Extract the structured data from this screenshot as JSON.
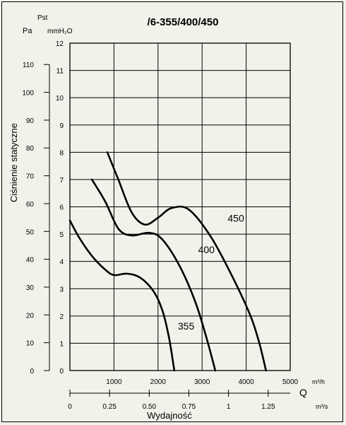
{
  "chart_data": {
    "type": "line",
    "title": "/6-355/400/450",
    "ylabel": "Ciśnienie statyczne",
    "xlabel": "Wydajność",
    "x_axis_letter": "Q",
    "y_units": {
      "left_top": "Pst",
      "left": "Pa",
      "right": "mmH₂O"
    },
    "x_units": {
      "top": "m³/h",
      "bottom": "m³/s"
    },
    "x_range_m3h": [
      0,
      5000
    ],
    "y_range_mmH2O": [
      0,
      12
    ],
    "x_ticks_m3h": [
      "1000",
      "2000",
      "3000",
      "4000",
      "5000"
    ],
    "x_ticks_m3s": [
      "0",
      "0.25",
      "0.50",
      "0.75",
      "1",
      "1.25"
    ],
    "x_ticks_m3s_values": [
      0,
      0.25,
      0.5,
      0.75,
      1,
      1.25
    ],
    "y_ticks_mmH2O": [
      "0",
      "1",
      "2",
      "3",
      "4",
      "5",
      "6",
      "7",
      "8",
      "9",
      "10",
      "11",
      "12"
    ],
    "y_ticks_Pa": [
      "0",
      "10",
      "20",
      "30",
      "40",
      "50",
      "60",
      "70",
      "80",
      "90",
      "100",
      "110"
    ],
    "y_ticks_Pa_values": [
      0,
      10,
      20,
      30,
      40,
      50,
      60,
      70,
      80,
      90,
      100,
      110
    ],
    "grid": true,
    "series": [
      {
        "name": "355",
        "points": [
          [
            0,
            5.5
          ],
          [
            200,
            4.9
          ],
          [
            500,
            4.2
          ],
          [
            800,
            3.7
          ],
          [
            1000,
            3.5
          ],
          [
            1300,
            3.55
          ],
          [
            1600,
            3.4
          ],
          [
            1900,
            2.9
          ],
          [
            2100,
            2.2
          ],
          [
            2250,
            1.2
          ],
          [
            2370,
            0
          ]
        ],
        "label_at": [
          2450,
          1.5
        ]
      },
      {
        "name": "400",
        "points": [
          [
            500,
            7.0
          ],
          [
            800,
            6.2
          ],
          [
            1100,
            5.2
          ],
          [
            1400,
            4.95
          ],
          [
            1800,
            5.05
          ],
          [
            2100,
            4.8
          ],
          [
            2500,
            3.8
          ],
          [
            2850,
            2.5
          ],
          [
            3100,
            1.2
          ],
          [
            3300,
            0
          ]
        ],
        "label_at": [
          2910,
          4.3
        ]
      },
      {
        "name": "450",
        "points": [
          [
            850,
            8.0
          ],
          [
            1100,
            7.0
          ],
          [
            1400,
            5.8
          ],
          [
            1700,
            5.35
          ],
          [
            2000,
            5.6
          ],
          [
            2300,
            5.95
          ],
          [
            2700,
            5.9
          ],
          [
            3200,
            4.9
          ],
          [
            3700,
            3.4
          ],
          [
            4100,
            2.0
          ],
          [
            4300,
            1.0
          ],
          [
            4450,
            0
          ]
        ],
        "label_at": [
          3580,
          5.45
        ]
      }
    ]
  }
}
